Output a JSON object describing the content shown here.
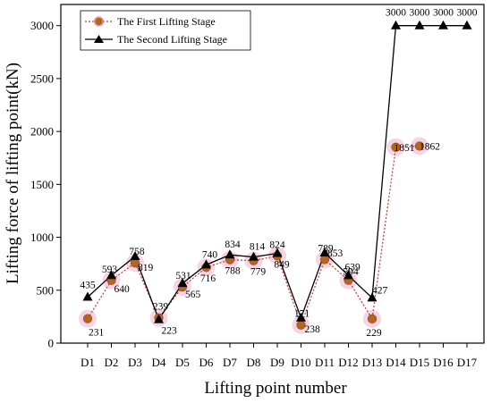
{
  "chart_data": {
    "type": "line",
    "xlabel": "Lifting point number",
    "ylabel": "Lifting force of lifting point(kN)",
    "categories": [
      "D1",
      "D2",
      "D3",
      "D4",
      "D5",
      "D6",
      "D7",
      "D8",
      "D9",
      "D10",
      "D11",
      "D12",
      "D13",
      "D14",
      "D15",
      "D16",
      "D17"
    ],
    "ylim": [
      0,
      3200
    ],
    "yticks": [
      0,
      500,
      1000,
      1500,
      2000,
      2500,
      3000
    ],
    "grid": false,
    "legend_position": "top-left",
    "series": [
      {
        "name": "The First Lifting Stage",
        "marker": "circle",
        "line_style": "dotted",
        "color": "#c0392b",
        "marker_fill": "#b5651d",
        "values": [
          231,
          593,
          758,
          239,
          531,
          716,
          788,
          779,
          824,
          171,
          789,
          594,
          229,
          1851,
          1862,
          null,
          null
        ],
        "labels": [
          "231",
          "593",
          "758",
          "239",
          "531",
          "716",
          "788",
          "779",
          "824",
          "171",
          "789",
          "594",
          "229",
          "1851",
          "1862",
          "",
          ""
        ]
      },
      {
        "name": "The Second Lifting Stage",
        "marker": "triangle",
        "line_style": "solid",
        "color": "#000000",
        "marker_fill": "#000000",
        "values": [
          435,
          640,
          819,
          223,
          565,
          740,
          834,
          814,
          849,
          238,
          853,
          639,
          427,
          3000,
          3000,
          3000,
          3000
        ],
        "labels": [
          "435",
          "640",
          "819",
          "223",
          "565",
          "740",
          "834",
          "814",
          "849",
          "238",
          "853",
          "639",
          "427",
          "3000",
          "3000",
          "3000",
          "3000"
        ]
      }
    ]
  }
}
